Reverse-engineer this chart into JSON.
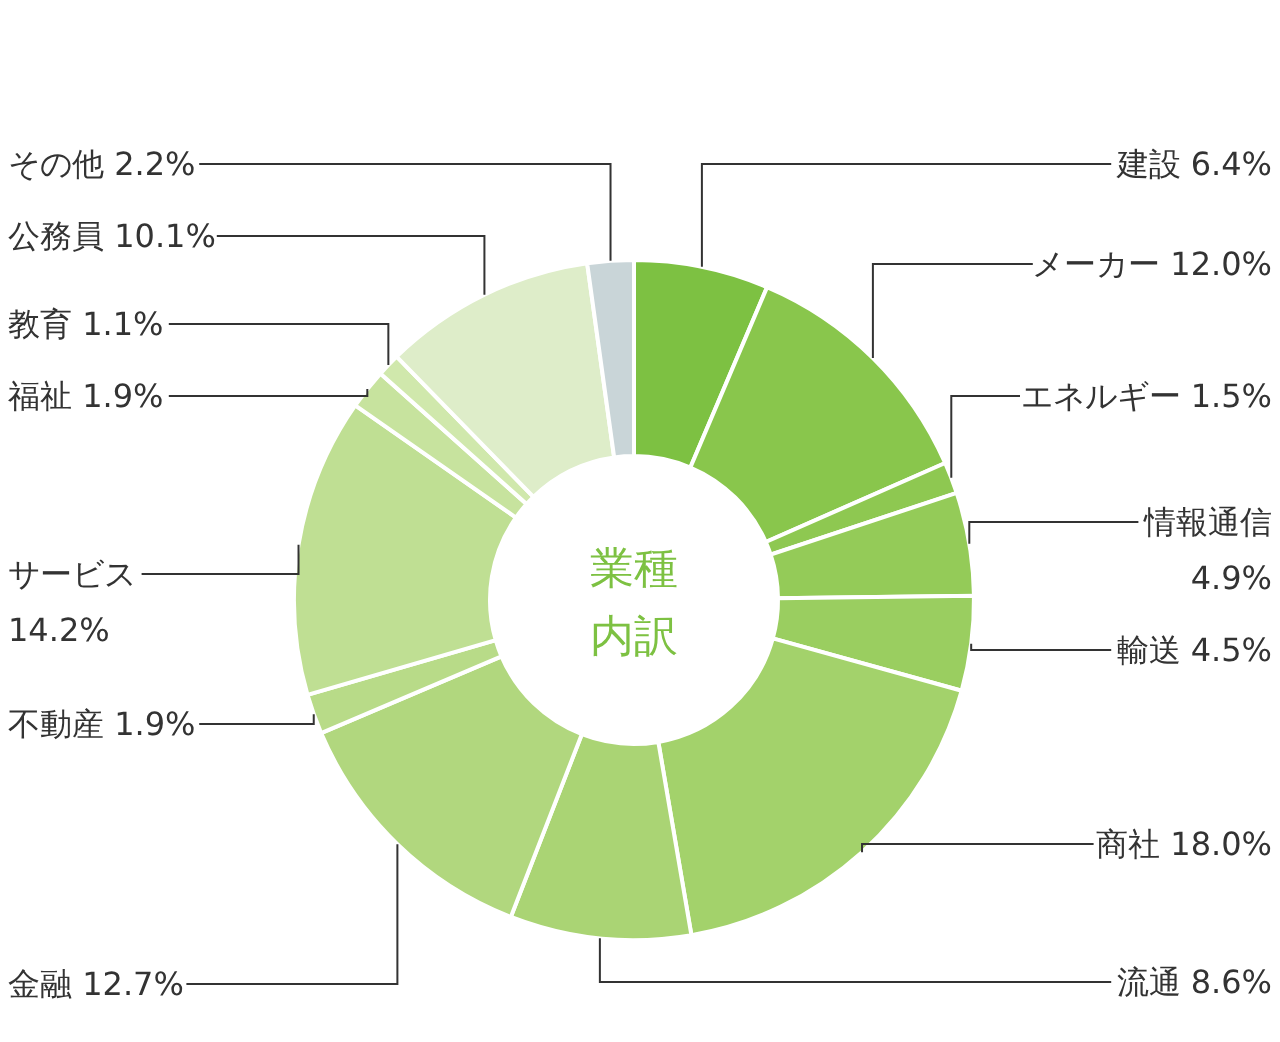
{
  "chart_data": {
    "type": "donut",
    "title": "業種内訳",
    "categories": [
      "建設",
      "メーカー",
      "エネルギー",
      "情報通信",
      "輸送",
      "商社",
      "流通",
      "金融",
      "不動産",
      "サービス",
      "福祉",
      "教育",
      "公務員",
      "その他"
    ],
    "values": [
      6.4,
      12.0,
      1.5,
      4.9,
      4.5,
      18.0,
      8.6,
      12.7,
      1.9,
      14.2,
      1.9,
      1.1,
      10.1,
      2.2
    ],
    "value_labels": [
      "6.4%",
      "12.0%",
      "1.5%",
      "4.9%",
      "4.5%",
      "18.0%",
      "8.6%",
      "12.7%",
      "1.9%",
      "14.2%",
      "1.9%",
      "1.1%",
      "10.1%",
      "2.2%"
    ],
    "colors": [
      "#7dc142",
      "#89c64c",
      "#8ec851",
      "#94cb58",
      "#9ace60",
      "#a3d26b",
      "#aad474",
      "#b1d77e",
      "#b8db88",
      "#bfdf93",
      "#c7e39e",
      "#d0e8ac",
      "#deedc9",
      "#c9d5d8"
    ]
  }
}
